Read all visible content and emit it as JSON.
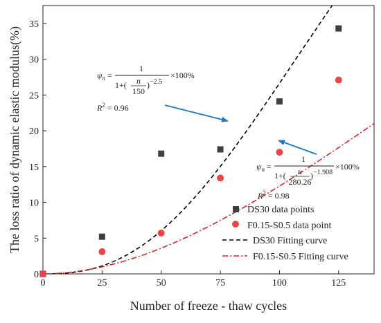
{
  "chart_data": {
    "type": "scatter",
    "xlabel": "Number of freeze - thaw cycles",
    "ylabel": "The loss ratio of dynamic elastic modulus(%)",
    "xlim": [
      0,
      140
    ],
    "ylim": [
      0,
      37.5
    ],
    "x_ticks": [
      "0",
      "25",
      "50",
      "75",
      "100",
      "125"
    ],
    "y_ticks": [
      "0",
      "5",
      "10",
      "15",
      "20",
      "25",
      "30",
      "35"
    ],
    "series": [
      {
        "name": "DS30 data points",
        "kind": "points",
        "marker": "square",
        "color": "#404040",
        "x": [
          0,
          25,
          50,
          75,
          100,
          125
        ],
        "y": [
          0,
          5.2,
          16.8,
          17.4,
          24.1,
          34.3
        ]
      },
      {
        "name": "F0.15-S0.5 data point",
        "kind": "points",
        "marker": "circle",
        "color": "#ee4444",
        "x": [
          0,
          25,
          50,
          75,
          100,
          125
        ],
        "y": [
          0,
          3.1,
          5.7,
          13.4,
          17.0,
          27.1
        ]
      },
      {
        "name": "DS30 Fitting curve",
        "kind": "curve",
        "style": "dashed",
        "color": "#000000",
        "model": {
          "c": 150,
          "b": -2.5
        }
      },
      {
        "name": "F0.15-S0.5 Fitting curve",
        "kind": "curve",
        "style": "dashdot",
        "color": "#e02020",
        "model": {
          "c": 280.26,
          "b": -1.908
        }
      }
    ],
    "legend_position": "bottom-right",
    "annotations": [
      {
        "psi": "ψ",
        "sub": "n",
        "eq": "=",
        "one": "1",
        "denom_prefix": "1+(",
        "n": "n",
        "c": "150",
        "denom_suffix": ")",
        "exponent": "−2.5",
        "times": "×100%",
        "r2_label": "R",
        "r2_sup": "2",
        "r2_value": " = 0.96"
      },
      {
        "psi": "ψ",
        "sub": "n",
        "eq": "=",
        "one": "1",
        "denom_prefix": "1+(",
        "n": "n",
        "c": "280.26",
        "denom_suffix": ")",
        "exponent": "−1.908",
        "times": "×100%",
        "r2_label": "R",
        "r2_sup": "2",
        "r2_value": " = 0.98"
      }
    ],
    "arrow_color": "#1a78c2"
  }
}
